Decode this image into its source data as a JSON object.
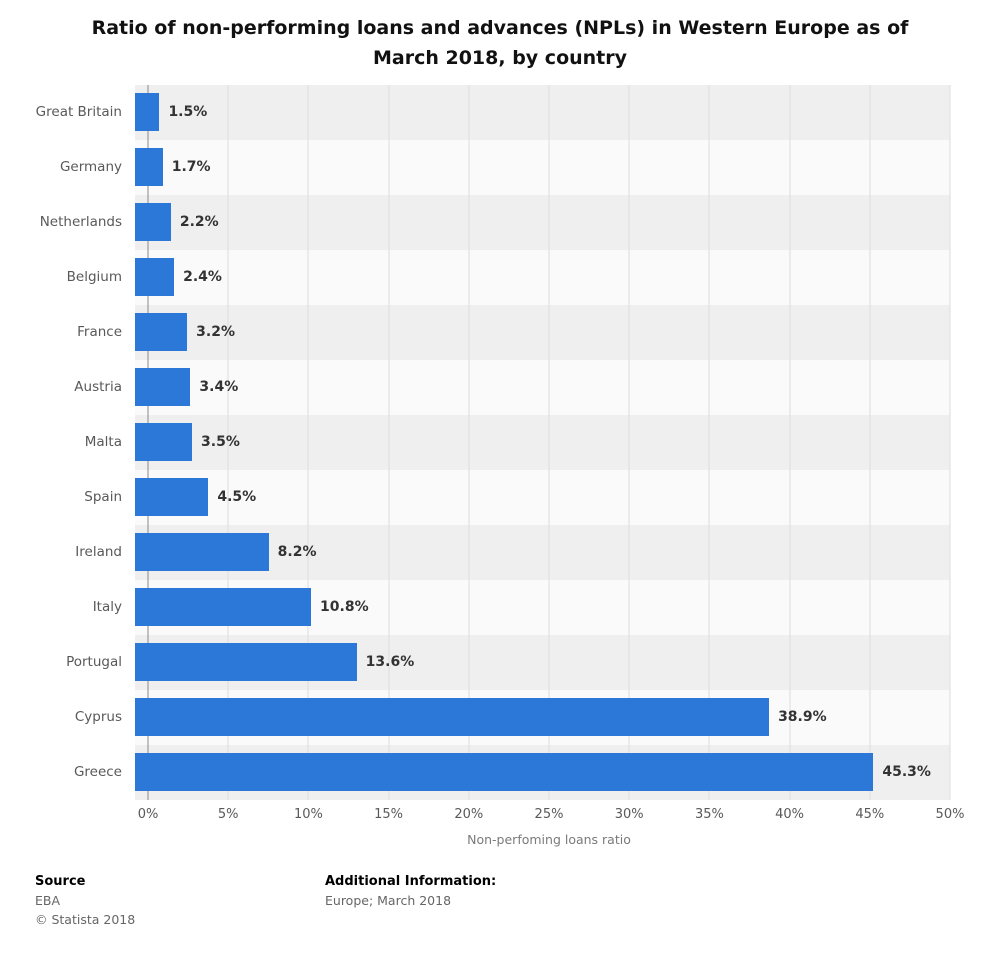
{
  "title": "Ratio of non-performing loans and advances (NPLs) in Western Europe as of March 2018, by country",
  "chart_data": {
    "type": "bar",
    "orientation": "horizontal",
    "title": "Ratio of non-performing loans and advances (NPLs) in Western Europe as of March 2018, by country",
    "categories": [
      "Great Britain",
      "Germany",
      "Netherlands",
      "Belgium",
      "France",
      "Austria",
      "Malta",
      "Spain",
      "Ireland",
      "Italy",
      "Portugal",
      "Cyprus",
      "Greece"
    ],
    "values": [
      1.5,
      1.7,
      2.2,
      2.4,
      3.2,
      3.4,
      3.5,
      4.5,
      8.2,
      10.8,
      13.6,
      38.9,
      45.3
    ],
    "value_labels": [
      "1.5%",
      "1.7%",
      "2.2%",
      "2.4%",
      "3.2%",
      "3.4%",
      "3.5%",
      "4.5%",
      "8.2%",
      "10.8%",
      "13.6%",
      "38.9%",
      "45.3%"
    ],
    "xlabel": "Non-perfoming loans ratio",
    "ylabel": "",
    "xlim": [
      0,
      50
    ],
    "x_ticks": [
      "0%",
      "5%",
      "10%",
      "15%",
      "20%",
      "25%",
      "30%",
      "35%",
      "40%",
      "45%",
      "50%"
    ],
    "grid": true,
    "legend": "none",
    "bar_color": "#2b78d9",
    "stripe_colors": [
      "#efefef",
      "#fafafa"
    ]
  },
  "footer": {
    "source_label": "Source",
    "source_value": "EBA",
    "copyright": "©  Statista 2018",
    "additional_label": "Additional Information:",
    "additional_value": "Europe; March 2018"
  }
}
